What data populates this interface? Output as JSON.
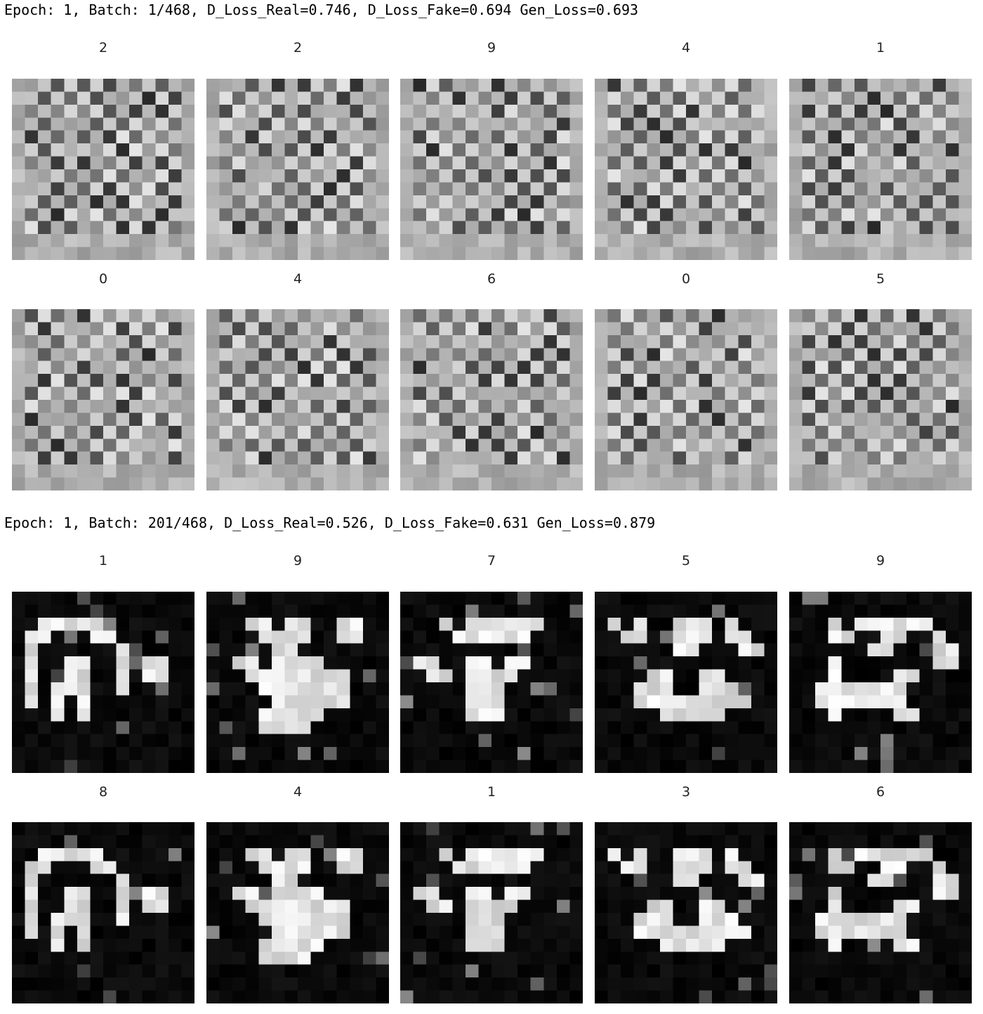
{
  "output": {
    "sections": [
      {
        "log_line": "Epoch: 1, Batch: 1/468, D_Loss_Real=0.746, D_Loss_Fake=0.694 Gen_Loss=0.693",
        "style": "noise",
        "rows": [
          [
            "2",
            "2",
            "9",
            "4",
            "1"
          ],
          [
            "0",
            "4",
            "6",
            "0",
            "5"
          ]
        ]
      },
      {
        "log_line": "Epoch: 1, Batch: 201/468, D_Loss_Real=0.526, D_Loss_Fake=0.631 Gen_Loss=0.879",
        "style": "digits",
        "rows": [
          [
            "1",
            "9",
            "7",
            "5",
            "9"
          ],
          [
            "8",
            "4",
            "1",
            "3",
            "6"
          ]
        ]
      }
    ]
  }
}
